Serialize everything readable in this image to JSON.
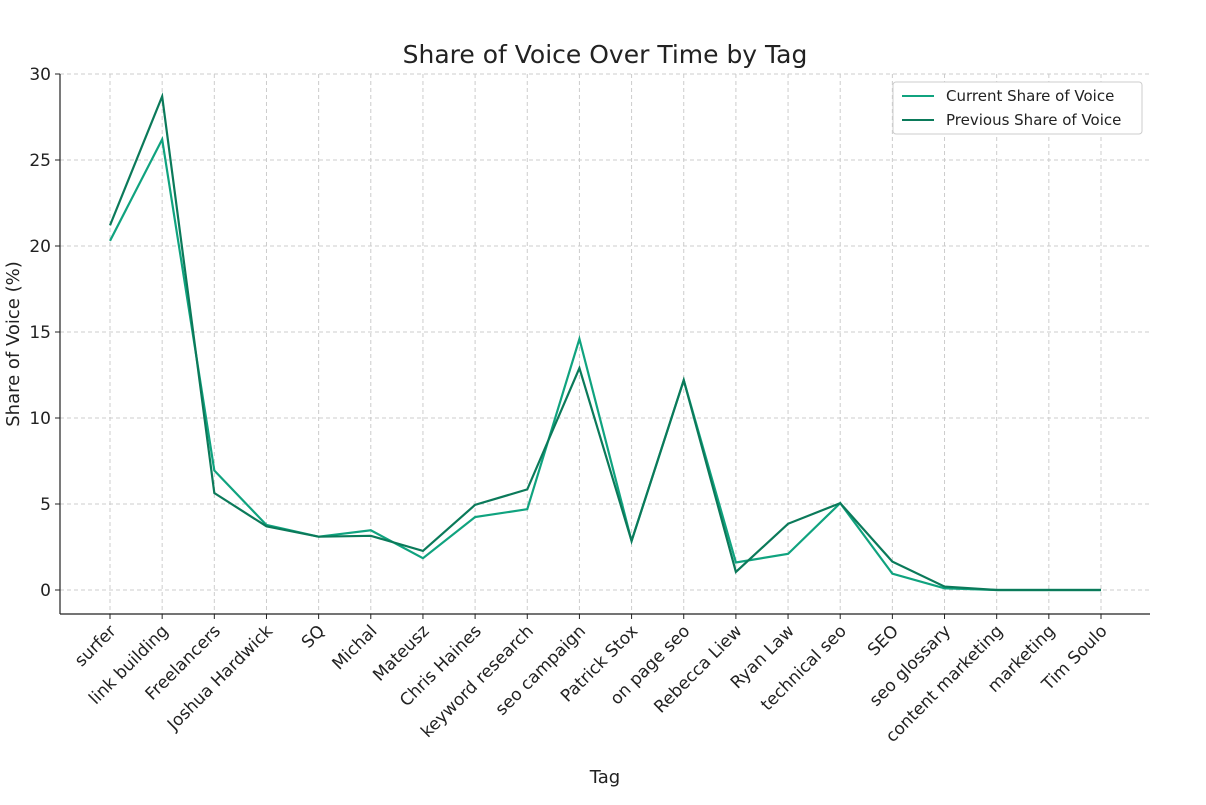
{
  "chart_data": {
    "type": "line",
    "title": "Share of Voice Over Time by Tag",
    "xlabel": "Tag",
    "ylabel": "Share of Voice (%)",
    "categories": [
      "surfer",
      "link building",
      "Freelancers",
      "Joshua Hardwick",
      "SQ",
      "Michal",
      "Mateusz",
      "Chris Haines",
      "keyword research",
      "seo campaign",
      "Patrick Stox",
      "on page seo",
      "Rebecca Liew",
      "Ryan Law",
      "technical seo",
      "SEO",
      "seo glossary",
      "content marketing",
      "marketing",
      "Tim Soulo"
    ],
    "series": [
      {
        "name": "Current Share of Voice",
        "color": "#10a37f",
        "values": [
          20.3,
          26.2,
          6.95,
          3.78,
          3.1,
          3.47,
          1.85,
          4.24,
          4.7,
          14.6,
          2.85,
          12.2,
          1.6,
          2.1,
          5.05,
          0.95,
          0.1,
          0.0,
          0.0,
          0.0
        ]
      },
      {
        "name": "Previous Share of Voice",
        "color": "#0b7a5a",
        "values": [
          21.2,
          28.7,
          5.64,
          3.7,
          3.1,
          3.15,
          2.27,
          4.95,
          5.85,
          12.9,
          2.85,
          12.2,
          1.05,
          3.85,
          5.05,
          1.65,
          0.2,
          0.0,
          0.0,
          0.0
        ]
      }
    ],
    "yticks": [
      0,
      5,
      10,
      15,
      20,
      25,
      30
    ],
    "ylim": [
      -1.4,
      31.4
    ],
    "grid": true,
    "legend": "top-right"
  }
}
